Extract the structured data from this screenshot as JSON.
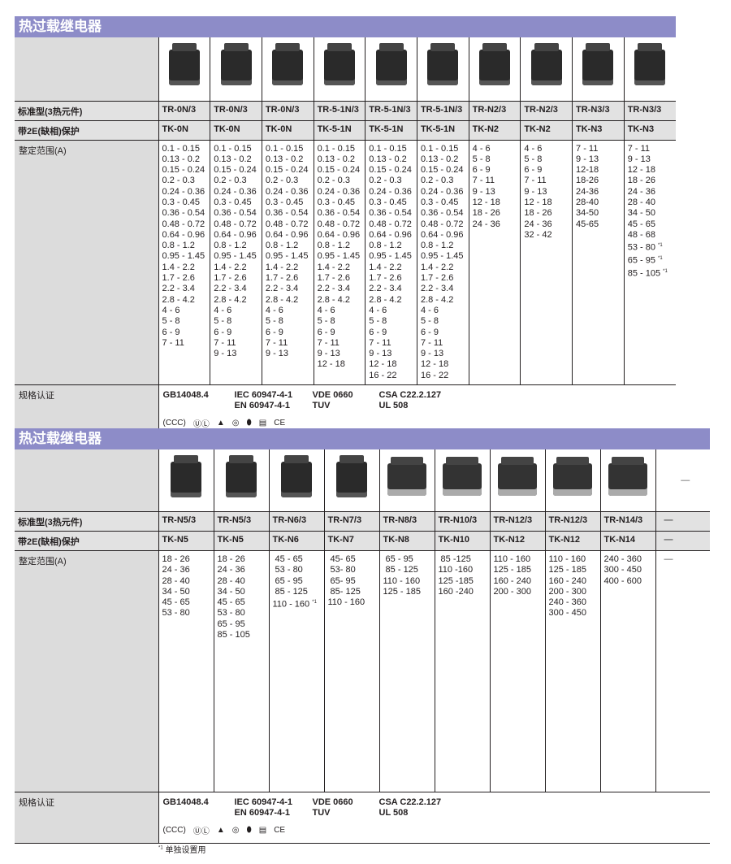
{
  "sections": [
    {
      "title": "热过载继电器",
      "labels": {
        "standard": "标准型(3热元件)",
        "phase": "带2E(缺相)保护",
        "range": "整定范围(A)",
        "cert": "规格认证"
      },
      "columns": [
        {
          "model": "TR-0N/3",
          "tk": "TK-0N",
          "ranges": [
            "0.1 - 0.15",
            "0.13 - 0.2",
            "0.15 - 0.24",
            "0.2 - 0.3",
            "0.24 - 0.36",
            "0.3 - 0.45",
            "0.36 - 0.54",
            "0.48 - 0.72",
            "0.64 - 0.96",
            "0.8 - 1.2",
            "0.95 - 1.45",
            "1.4 - 2.2",
            "1.7 - 2.6",
            "2.2 - 3.4",
            "2.8 - 4.2",
            "4 - 6",
            "5 - 8",
            "6 - 9",
            "7 - 11"
          ]
        },
        {
          "model": "TR-0N/3",
          "tk": "TK-0N",
          "ranges": [
            "0.1 - 0.15",
            "0.13 - 0.2",
            "0.15 - 0.24",
            "0.2 - 0.3",
            "0.24 - 0.36",
            "0.3 - 0.45",
            "0.36 - 0.54",
            "0.48 - 0.72",
            "0.64 - 0.96",
            "0.8 - 1.2",
            "0.95 - 1.45",
            "1.4 - 2.2",
            "1.7 - 2.6",
            "2.2 - 3.4",
            "2.8 - 4.2",
            "4 - 6",
            "5 - 8",
            "6 - 9",
            "7 - 11",
            "9 - 13"
          ]
        },
        {
          "model": "TR-0N/3",
          "tk": "TK-0N",
          "ranges": [
            "0.1 - 0.15",
            "0.13 - 0.2",
            "0.15 - 0.24",
            "0.2 - 0.3",
            "0.24 - 0.36",
            "0.3 - 0.45",
            "0.36 - 0.54",
            "0.48 - 0.72",
            "0.64 - 0.96",
            "0.8 - 1.2",
            "0.95 - 1.45",
            "1.4 - 2.2",
            "1.7 - 2.6",
            "2.2 - 3.4",
            "2.8 - 4.2",
            "4 - 6",
            "5 - 8",
            "6 - 9",
            "7 - 11",
            "9 - 13"
          ]
        },
        {
          "model": "TR-5-1N/3",
          "tk": "TK-5-1N",
          "ranges": [
            "0.1 - 0.15",
            "0.13 - 0.2",
            "0.15 - 0.24",
            "0.2 - 0.3",
            "0.24 - 0.36",
            "0.3 - 0.45",
            "0.36 - 0.54",
            "0.48 - 0.72",
            "0.64 - 0.96",
            "0.8 - 1.2",
            "0.95 - 1.45",
            "1.4 - 2.2",
            "1.7 - 2.6",
            "2.2 - 3.4",
            "2.8 - 4.2",
            "4 - 6",
            "5 - 8",
            "6 - 9",
            "7 - 11",
            "9 - 13",
            "12 - 18"
          ]
        },
        {
          "model": "TR-5-1N/3",
          "tk": "TK-5-1N",
          "ranges": [
            "0.1 - 0.15",
            "0.13 - 0.2",
            "0.15 - 0.24",
            "0.2 - 0.3",
            "0.24 - 0.36",
            "0.3 - 0.45",
            "0.36 - 0.54",
            "0.48 - 0.72",
            "0.64 - 0.96",
            "0.8 - 1.2",
            "0.95 - 1.45",
            "1.4 - 2.2",
            "1.7 - 2.6",
            "2.2 - 3.4",
            "2.8 - 4.2",
            "4 - 6",
            "5 - 8",
            "6 - 9",
            "7 - 11",
            "9 - 13",
            "12 - 18",
            "16 - 22"
          ]
        },
        {
          "model": "TR-5-1N/3",
          "tk": "TK-5-1N",
          "ranges": [
            "0.1 - 0.15",
            "0.13 - 0.2",
            "0.15 - 0.24",
            "0.2 - 0.3",
            "0.24 - 0.36",
            "0.3 - 0.45",
            "0.36 - 0.54",
            "0.48 - 0.72",
            "0.64 - 0.96",
            "0.8 - 1.2",
            "0.95 - 1.45",
            "1.4 - 2.2",
            "1.7 - 2.6",
            "2.2 - 3.4",
            "2.8 - 4.2",
            "4 - 6",
            "5 - 8",
            "6 - 9",
            "7 - 11",
            "9 - 13",
            "12 - 18",
            "16 - 22"
          ]
        },
        {
          "model": "TR-N2/3",
          "tk": "TK-N2",
          "ranges": [
            "4 - 6",
            "5 - 8",
            "6 - 9",
            "7 - 11",
            "9 - 13",
            "12 - 18",
            "18 - 26",
            "24 - 36"
          ]
        },
        {
          "model": "TR-N2/3",
          "tk": "TK-N2",
          "ranges": [
            "4 - 6",
            "5 - 8",
            "6 - 9",
            "7 - 11",
            "9 - 13",
            "12 - 18",
            "18 - 26",
            "24 - 36",
            "32 - 42"
          ]
        },
        {
          "model": "TR-N3/3",
          "tk": "TK-N3",
          "ranges": [
            "7 - 11",
            "9 - 13",
            "12-18",
            "18-26",
            "24-36",
            "28-40",
            "34-50",
            "45-65"
          ]
        },
        {
          "model": "TR-N3/3",
          "tk": "TK-N3",
          "ranges": [
            "7 - 11",
            "9 - 13",
            "12 - 18",
            "18 - 26",
            "24 - 36",
            "28 - 40",
            "34 - 50",
            "45 - 65",
            "48 - 68",
            "53 - 80 *1",
            "65 - 95 *1",
            "85 - 105 *1"
          ]
        }
      ],
      "standards": [
        "GB14048.4",
        "IEC 60947-4-1\nEN 60947-4-1",
        "VDE 0660\nTUV",
        "CSA C22.2.127\nUL 508"
      ],
      "logos": [
        "ccc-icon",
        "ul-icon",
        "semko-icon",
        "nemko-icon",
        "tuv-icon",
        "lloyds-icon",
        "ce-icon"
      ]
    },
    {
      "title": "热过载继电器",
      "labels": {
        "standard": "标准型(3热元件)",
        "phase": "带2E(缺相)保护",
        "range": "整定范围(A)",
        "cert": "规格认证"
      },
      "columns": [
        {
          "model": "TR-N5/3",
          "tk": "TK-N5",
          "ranges": [
            "18 - 26",
            "24 - 36",
            "28 - 40",
            "34 - 50",
            "45 - 65",
            "53 - 80"
          ]
        },
        {
          "model": "TR-N5/3",
          "tk": "TK-N5",
          "ranges": [
            "18 - 26",
            "24 - 36",
            "28 - 40",
            "34 - 50",
            "45 - 65",
            "53 - 80",
            "65 - 95",
            "85 - 105"
          ]
        },
        {
          "model": "TR-N6/3",
          "tk": "TK-N6",
          "ranges": [
            " 45 - 65",
            " 53 - 80",
            " 65 - 95",
            " 85 - 125",
            "110 - 160 *1"
          ]
        },
        {
          "model": "TR-N7/3",
          "tk": "TK-N7",
          "ranges": [
            " 45- 65",
            " 53- 80",
            " 65- 95",
            " 85- 125",
            "110 - 160"
          ]
        },
        {
          "model": "TR-N8/3",
          "tk": "TK-N8",
          "ranges": [
            " 65 - 95",
            " 85 - 125",
            "110 - 160",
            "125 - 185"
          ]
        },
        {
          "model": "TR-N10/3",
          "tk": "TK-N10",
          "ranges": [
            " 85 -125",
            "110 -160",
            "125 -185",
            "160 -240"
          ]
        },
        {
          "model": "TR-N12/3",
          "tk": "TK-N12",
          "ranges": [
            "110 - 160",
            "125 - 185",
            "160 - 240",
            "200 - 300"
          ]
        },
        {
          "model": "TR-N12/3",
          "tk": "TK-N12",
          "ranges": [
            "110 - 160",
            "125 - 185",
            "160 - 240",
            "200 - 300",
            "240 - 360",
            "300 - 450"
          ]
        },
        {
          "model": "TR-N14/3",
          "tk": "TK-N14",
          "ranges": [
            "240 - 360",
            "300 - 450",
            "400 - 600"
          ]
        }
      ],
      "empty_mark": "—",
      "standards": [
        "GB14048.4",
        "IEC 60947-4-1\nEN 60947-4-1",
        "VDE 0660\nTUV",
        "CSA C22.2.127\nUL 508"
      ],
      "logos": [
        "ccc-icon",
        "ul-icon",
        "semko-icon",
        "nemko-icon",
        "tuv-icon",
        "lloyds-icon",
        "ce-icon"
      ]
    }
  ],
  "footnote": {
    "mark": "*1",
    "text": "单独设置用"
  }
}
